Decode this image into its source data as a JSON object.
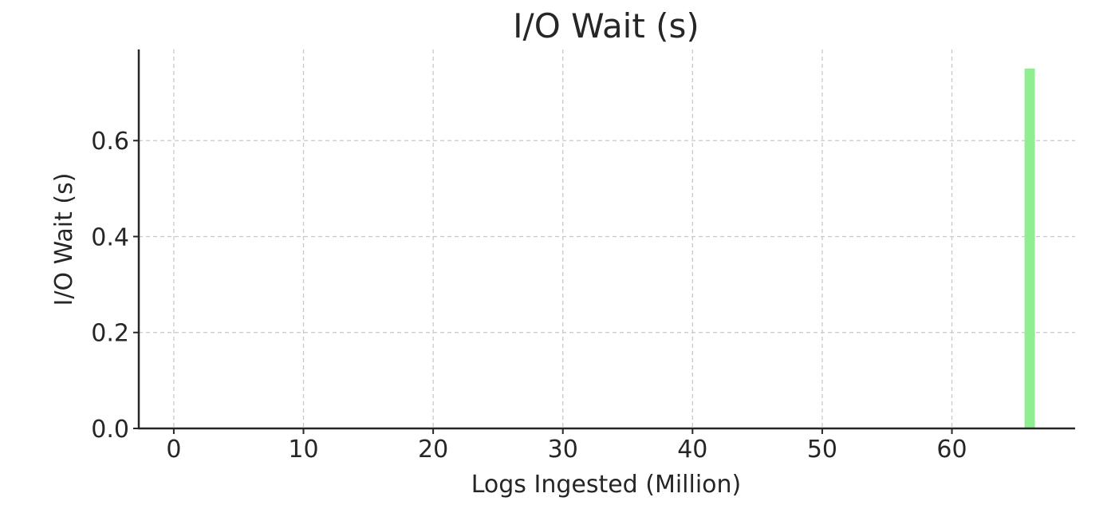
{
  "chart_data": {
    "type": "bar",
    "title": "I/O Wait (s)",
    "xlabel": "Logs Ingested (Million)",
    "ylabel": "I/O Wait (s)",
    "x": [
      66
    ],
    "values": [
      0.75
    ],
    "bar_width": 0.8,
    "xlim": [
      -2.7,
      69.5
    ],
    "ylim": [
      0,
      0.79
    ],
    "xticks": [
      0,
      10,
      20,
      30,
      40,
      50,
      60
    ],
    "yticks": [
      0.0,
      0.2,
      0.4,
      0.6
    ],
    "ytick_labels": [
      "0.0",
      "0.2",
      "0.4",
      "0.6"
    ],
    "grid": true,
    "bar_color": "#90ee90",
    "axis_color": "#262626",
    "grid_color": "#c8c8c8"
  }
}
